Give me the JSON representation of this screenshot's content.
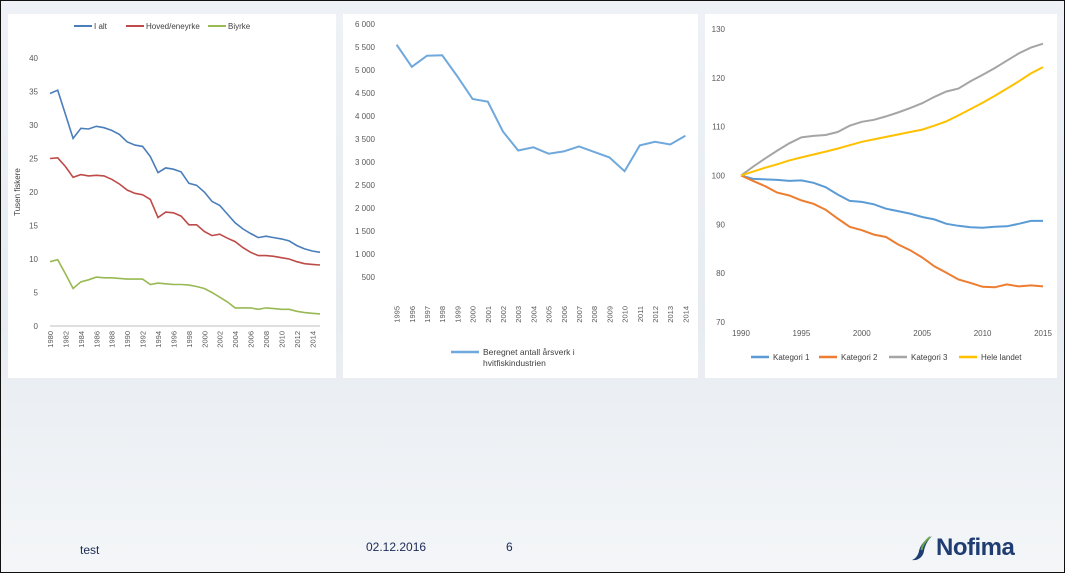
{
  "footer": {
    "left_text": "test",
    "date": "02.12.2016",
    "page": "6"
  },
  "logo": {
    "text": "Nofima",
    "icon": "nofima-swoosh-icon",
    "color": "#1f3d73",
    "accent": "#6aa84f"
  },
  "chart_data": [
    {
      "type": "line",
      "ylabel": "Tusen fiskere",
      "ylim": [
        0,
        40
      ],
      "yticks": [
        0,
        5,
        10,
        15,
        20,
        25,
        30,
        35,
        40
      ],
      "x": [
        1980,
        1981,
        1982,
        1983,
        1984,
        1985,
        1986,
        1987,
        1988,
        1989,
        1990,
        1991,
        1992,
        1993,
        1994,
        1995,
        1996,
        1997,
        1998,
        1999,
        2000,
        2001,
        2002,
        2003,
        2004,
        2005,
        2006,
        2007,
        2008,
        2009,
        2010,
        2011,
        2012,
        2013,
        2014,
        2015
      ],
      "xticks": [
        "1980",
        "1982",
        "1984",
        "1986",
        "1988",
        "1990",
        "1992",
        "1994",
        "1996",
        "1998",
        "2000",
        "2002",
        "2004",
        "2006",
        "2008",
        "2010",
        "2012",
        "2014"
      ],
      "legend_position": "top",
      "series": [
        {
          "name": "I alt",
          "color": "#4a7ebb",
          "values": [
            34.7,
            35.2,
            31.6,
            28.0,
            29.5,
            29.4,
            29.8,
            29.6,
            29.2,
            28.6,
            27.5,
            27.0,
            26.8,
            25.3,
            22.9,
            23.6,
            23.4,
            23.0,
            21.3,
            21.0,
            20.0,
            18.6,
            18.0,
            16.7,
            15.4,
            14.5,
            13.8,
            13.2,
            13.4,
            13.2,
            13.0,
            12.7,
            12.0,
            11.5,
            11.2,
            11.0
          ]
        },
        {
          "name": "Hoved/eneyrke",
          "color": "#be4b48",
          "values": [
            25.0,
            25.1,
            23.8,
            22.2,
            22.6,
            22.4,
            22.5,
            22.4,
            21.9,
            21.2,
            20.3,
            19.8,
            19.6,
            18.9,
            16.2,
            17.0,
            16.9,
            16.4,
            15.1,
            15.1,
            14.1,
            13.5,
            13.7,
            13.1,
            12.6,
            11.7,
            11.0,
            10.5,
            10.5,
            10.4,
            10.2,
            10.0,
            9.6,
            9.3,
            9.2,
            9.1
          ]
        },
        {
          "name": "Biyrke",
          "color": "#98b954",
          "values": [
            9.6,
            9.9,
            7.8,
            5.6,
            6.6,
            6.9,
            7.3,
            7.2,
            7.2,
            7.1,
            7.0,
            7.0,
            7.0,
            6.2,
            6.4,
            6.3,
            6.2,
            6.2,
            6.1,
            5.9,
            5.6,
            5.0,
            4.3,
            3.6,
            2.7,
            2.7,
            2.7,
            2.5,
            2.7,
            2.6,
            2.5,
            2.5,
            2.2,
            2.0,
            1.9,
            1.8
          ]
        }
      ]
    },
    {
      "type": "line",
      "ylim": [
        0,
        6000
      ],
      "yticks": [
        500,
        1000,
        1500,
        2000,
        2500,
        3000,
        3500,
        4000,
        4500,
        5000,
        5500,
        6000
      ],
      "ytick_labels": [
        "500",
        "1 000",
        "1 500",
        "2 000",
        "2 500",
        "3 000",
        "3 500",
        "4 000",
        "4 500",
        "5 000",
        "5 500",
        "6 000"
      ],
      "x": [
        "1995",
        "1996",
        "1997",
        "1998",
        "1999",
        "2000",
        "2001",
        "2002",
        "2003",
        "2004",
        "2005",
        "2006",
        "2007",
        "2008",
        "2009",
        "2010",
        "2011",
        "2012",
        "2013",
        "2014"
      ],
      "legend_position": "bottom",
      "series": [
        {
          "name": "Beregnet antall årsverk i hvitfiskindustrien",
          "color": "#6fa8dc",
          "name_lines": [
            "Beregnet antall årsverk i",
            "hvitfiskindustrien"
          ],
          "values": [
            5550,
            5070,
            5310,
            5320,
            4860,
            4370,
            4310,
            3660,
            3250,
            3320,
            3180,
            3230,
            3340,
            3220,
            3100,
            2800,
            3360,
            3440,
            3380,
            3570
          ]
        }
      ]
    },
    {
      "type": "line",
      "ylim": [
        70,
        130
      ],
      "yticks": [
        70,
        80,
        90,
        100,
        110,
        120,
        130
      ],
      "xlim": [
        1990,
        2015
      ],
      "xticks": [
        1990,
        1995,
        2000,
        2005,
        2010,
        2015
      ],
      "x": [
        1990,
        1991,
        1992,
        1993,
        1994,
        1995,
        1996,
        1997,
        1998,
        1999,
        2000,
        2001,
        2002,
        2003,
        2004,
        2005,
        2006,
        2007,
        2008,
        2009,
        2010,
        2011,
        2012,
        2013,
        2014,
        2015
      ],
      "legend_position": "bottom",
      "series": [
        {
          "name": "Kategori 1",
          "color": "#5b9bd5",
          "values": [
            100,
            99.3,
            99.2,
            99.1,
            98.9,
            99.0,
            98.5,
            97.6,
            96.1,
            94.8,
            94.6,
            94.1,
            93.2,
            92.7,
            92.2,
            91.5,
            91.0,
            90.1,
            89.7,
            89.4,
            89.3,
            89.5,
            89.6,
            90.1,
            90.7,
            90.7
          ]
        },
        {
          "name": "Kategori 2",
          "color": "#ed7d31",
          "values": [
            100,
            98.9,
            97.8,
            96.5,
            95.9,
            94.9,
            94.2,
            93.0,
            91.2,
            89.5,
            88.8,
            87.9,
            87.4,
            85.9,
            84.7,
            83.2,
            81.4,
            80.1,
            78.7,
            78.0,
            77.2,
            77.1,
            77.7,
            77.3,
            77.5,
            77.3
          ]
        },
        {
          "name": "Kategori 3",
          "color": "#a5a5a5",
          "values": [
            100,
            101.8,
            103.5,
            105.1,
            106.6,
            107.8,
            108.1,
            108.3,
            108.9,
            110.2,
            111.0,
            111.4,
            112.1,
            112.9,
            113.8,
            114.8,
            116.1,
            117.2,
            117.8,
            119.3,
            120.6,
            122.0,
            123.5,
            125.0,
            126.2,
            127.0
          ]
        },
        {
          "name": "Hele landet",
          "color": "#ffc000",
          "values": [
            100,
            100.8,
            101.6,
            102.3,
            103.1,
            103.7,
            104.3,
            104.9,
            105.5,
            106.2,
            106.9,
            107.4,
            107.9,
            108.4,
            108.9,
            109.4,
            110.2,
            111.1,
            112.3,
            113.6,
            114.9,
            116.3,
            117.8,
            119.3,
            120.9,
            122.2
          ]
        }
      ]
    }
  ]
}
